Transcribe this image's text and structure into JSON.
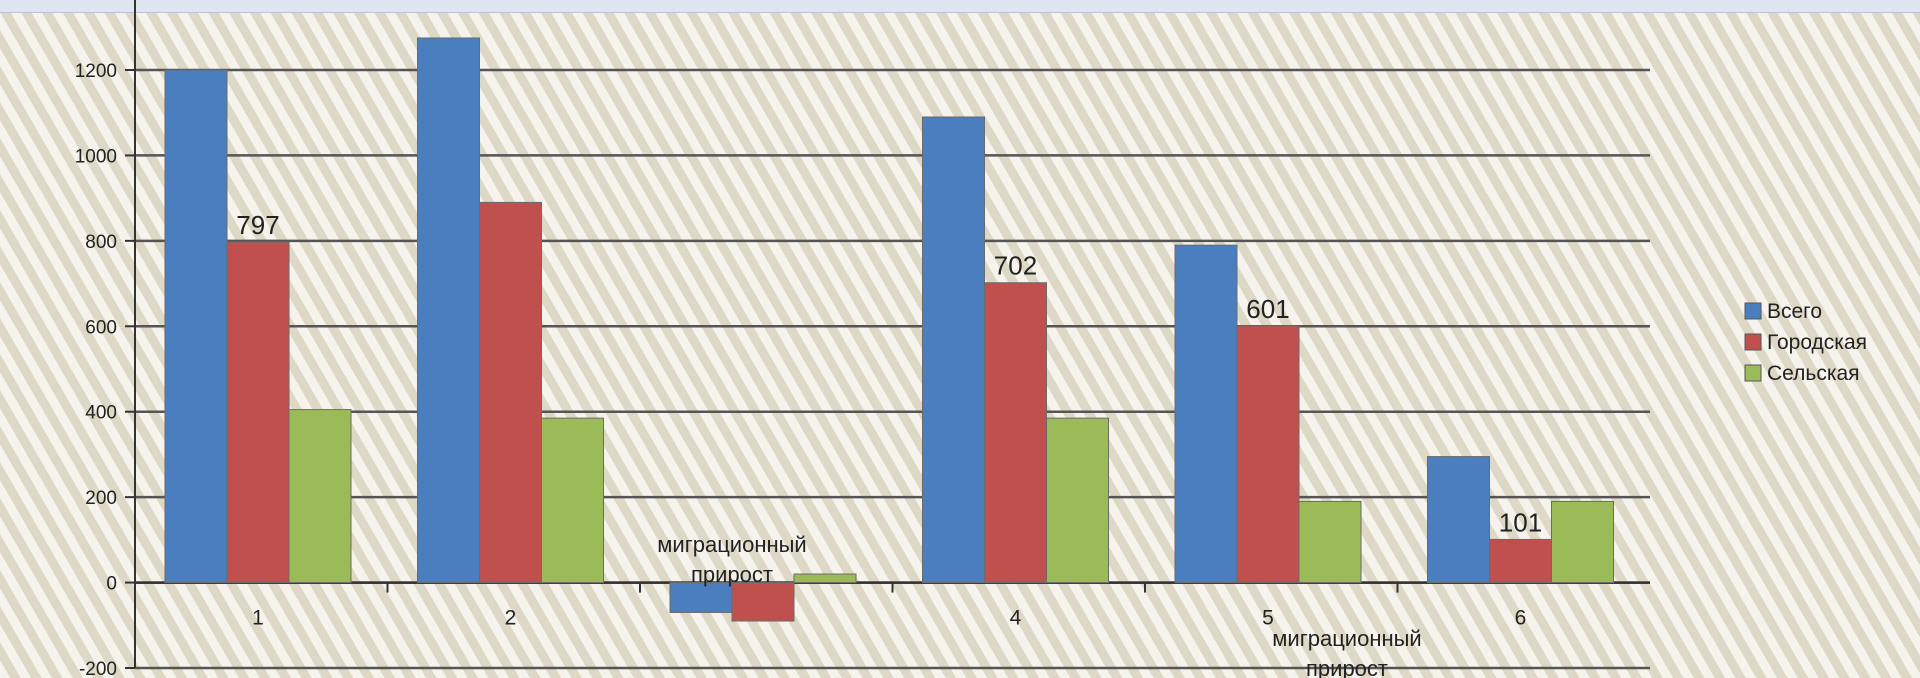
{
  "chart_data": {
    "type": "bar",
    "categories": [
      "1",
      "2",
      "",
      "4",
      "5",
      "6"
    ],
    "series": [
      {
        "name": "Всего",
        "values": [
          1200,
          1275,
          -70,
          1090,
          790,
          295
        ]
      },
      {
        "name": "Городская",
        "values": [
          797,
          890,
          -90,
          702,
          601,
          101
        ]
      },
      {
        "name": "Сельская",
        "values": [
          405,
          385,
          20,
          385,
          190,
          190
        ]
      }
    ],
    "colors": [
      "#4a7ebf",
      "#c0504d",
      "#9bbb59"
    ],
    "data_labels": [
      {
        "category_index": 0,
        "series_index": 1,
        "text": "797"
      },
      {
        "category_index": 3,
        "series_index": 1,
        "text": "702"
      },
      {
        "category_index": 4,
        "series_index": 1,
        "text": "601"
      },
      {
        "category_index": 5,
        "series_index": 1,
        "text": "101"
      }
    ],
    "annotations": [
      {
        "lines": [
          "миграционный",
          "прирост"
        ],
        "category_index": 2
      },
      {
        "lines": [
          "миграционный",
          "прирост"
        ],
        "category_index": 4
      }
    ],
    "y_ticks": [
      1200,
      1000,
      800,
      600,
      400,
      200,
      0,
      -200
    ],
    "ylim": [
      -200,
      1200
    ],
    "grid": true,
    "legend": "right",
    "title": "",
    "xlabel": "",
    "ylabel": ""
  }
}
